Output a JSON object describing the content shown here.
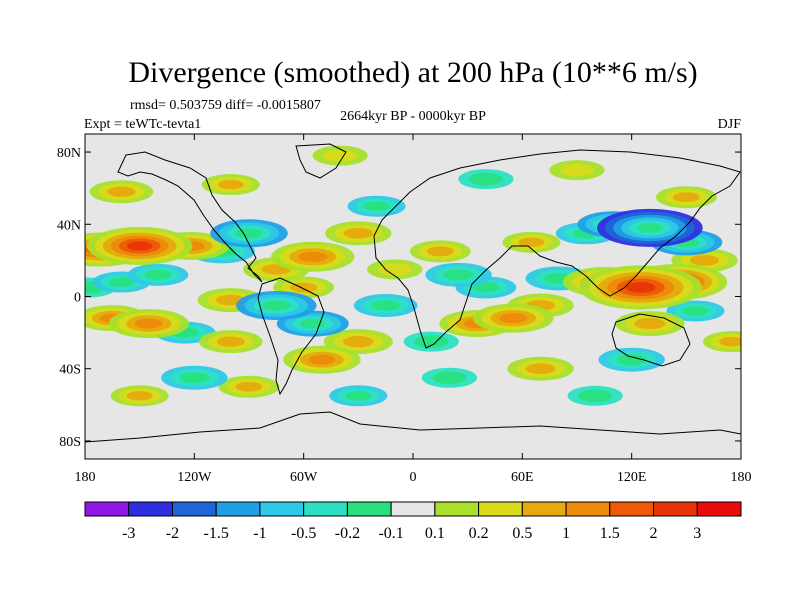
{
  "chart_data": {
    "type": "heatmap",
    "title": "Divergence (smoothed) at 200 hPa (10**6 m/s)",
    "stats_line": "rmsd= 0.503759 diff= -0.0015807",
    "period": "2664kyr BP - 0000kyr BP",
    "experiment": "Expt = teWTc-tevta1",
    "season": "DJF",
    "xlim": [
      -180,
      180
    ],
    "ylim": [
      -90,
      90
    ],
    "x_ticks": [
      {
        "value": -180,
        "label": "180"
      },
      {
        "value": -120,
        "label": "120W"
      },
      {
        "value": -60,
        "label": "60W"
      },
      {
        "value": 0,
        "label": "0"
      },
      {
        "value": 60,
        "label": "60E"
      },
      {
        "value": 120,
        "label": "120E"
      },
      {
        "value": 180,
        "label": "180"
      }
    ],
    "y_ticks": [
      {
        "value": 80,
        "label": "80N"
      },
      {
        "value": 40,
        "label": "40N"
      },
      {
        "value": 0,
        "label": "0"
      },
      {
        "value": -40,
        "label": "40S"
      },
      {
        "value": -80,
        "label": "80S"
      }
    ],
    "colorbar": {
      "levels": [
        "-3",
        "-2",
        "-1.5",
        "-1",
        "-0.5",
        "-0.2",
        "-0.1",
        "0.1",
        "0.2",
        "0.5",
        "1",
        "1.5",
        "2",
        "3"
      ],
      "colors": [
        "#8f17e8",
        "#2f2fe0",
        "#1e66d8",
        "#1fa0e6",
        "#2dc9e6",
        "#2de0c2",
        "#28e07e",
        "#e6e6e6",
        "#a8e02a",
        "#d8da1a",
        "#e6aa0e",
        "#ec8a0a",
        "#ee5a08",
        "#e8340a",
        "#e80c0c"
      ]
    },
    "features": [
      {
        "lon": -150,
        "lat": 28,
        "value": 2.2
      },
      {
        "lon": -172,
        "lat": 26,
        "value": 1.8
      },
      {
        "lon": -122,
        "lat": 28,
        "value": 1.2
      },
      {
        "lon": -140,
        "lat": 12,
        "value": -0.6
      },
      {
        "lon": -160,
        "lat": 8,
        "value": -0.5
      },
      {
        "lon": -90,
        "lat": 35,
        "value": -1.2
      },
      {
        "lon": -105,
        "lat": 25,
        "value": -0.8
      },
      {
        "lon": -55,
        "lat": 22,
        "value": 1.4
      },
      {
        "lon": -75,
        "lat": 15,
        "value": 0.8
      },
      {
        "lon": -30,
        "lat": 35,
        "value": 0.8
      },
      {
        "lon": -20,
        "lat": 50,
        "value": -0.5
      },
      {
        "lon": -100,
        "lat": -2,
        "value": 0.8
      },
      {
        "lon": -75,
        "lat": -5,
        "value": -1.3
      },
      {
        "lon": -55,
        "lat": -15,
        "value": -1.0
      },
      {
        "lon": -60,
        "lat": 5,
        "value": 0.6
      },
      {
        "lon": -145,
        "lat": -15,
        "value": 1.3
      },
      {
        "lon": -165,
        "lat": -12,
        "value": 1.0
      },
      {
        "lon": -125,
        "lat": -20,
        "value": -0.6
      },
      {
        "lon": -100,
        "lat": -25,
        "value": 0.7
      },
      {
        "lon": -50,
        "lat": -35,
        "value": 1.2
      },
      {
        "lon": -30,
        "lat": -25,
        "value": 0.9
      },
      {
        "lon": -15,
        "lat": -5,
        "value": -0.7
      },
      {
        "lon": 25,
        "lat": 12,
        "value": -0.8
      },
      {
        "lon": 40,
        "lat": 5,
        "value": -0.6
      },
      {
        "lon": 15,
        "lat": 25,
        "value": 0.6
      },
      {
        "lon": 35,
        "lat": -15,
        "value": 1.1
      },
      {
        "lon": 55,
        "lat": -12,
        "value": 1.3
      },
      {
        "lon": 70,
        "lat": -5,
        "value": 0.8
      },
      {
        "lon": 80,
        "lat": 10,
        "value": -0.8
      },
      {
        "lon": 65,
        "lat": 30,
        "value": 0.5
      },
      {
        "lon": 95,
        "lat": 35,
        "value": -0.6
      },
      {
        "lon": 130,
        "lat": 38,
        "value": -2.2
      },
      {
        "lon": 110,
        "lat": 40,
        "value": -1.0
      },
      {
        "lon": 150,
        "lat": 30,
        "value": -1.0
      },
      {
        "lon": 125,
        "lat": 5,
        "value": 2.8
      },
      {
        "lon": 145,
        "lat": 8,
        "value": 2.0
      },
      {
        "lon": 105,
        "lat": 8,
        "value": 1.4
      },
      {
        "lon": 160,
        "lat": 20,
        "value": 0.8
      },
      {
        "lon": 130,
        "lat": -15,
        "value": 0.9
      },
      {
        "lon": 155,
        "lat": -8,
        "value": -0.5
      },
      {
        "lon": 120,
        "lat": -35,
        "value": -0.8
      },
      {
        "lon": 70,
        "lat": -40,
        "value": 0.8
      },
      {
        "lon": 20,
        "lat": -45,
        "value": -0.4
      },
      {
        "lon": -120,
        "lat": -45,
        "value": -0.8
      },
      {
        "lon": -90,
        "lat": -50,
        "value": 0.6
      },
      {
        "lon": -150,
        "lat": -55,
        "value": 0.5
      },
      {
        "lon": -30,
        "lat": -55,
        "value": -0.5
      },
      {
        "lon": 100,
        "lat": -55,
        "value": -0.4
      },
      {
        "lon": -100,
        "lat": 62,
        "value": 0.5
      },
      {
        "lon": -160,
        "lat": 58,
        "value": 0.7
      },
      {
        "lon": 40,
        "lat": 65,
        "value": -0.4
      },
      {
        "lon": 90,
        "lat": 70,
        "value": 0.4
      },
      {
        "lon": -40,
        "lat": 78,
        "value": 0.4
      },
      {
        "lon": 150,
        "lat": 55,
        "value": 0.6
      },
      {
        "lon": 175,
        "lat": -25,
        "value": 0.5
      },
      {
        "lon": -178,
        "lat": 5,
        "value": -0.4
      },
      {
        "lon": 10,
        "lat": -25,
        "value": -0.4
      },
      {
        "lon": -10,
        "lat": 15,
        "value": 0.4
      }
    ]
  }
}
